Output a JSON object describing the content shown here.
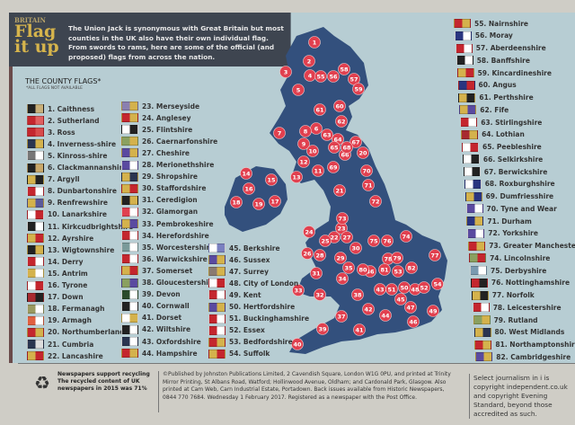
{
  "header": {
    "kicker": "BRITAIN",
    "title": "Flag it up",
    "intro": "The Union Jack is synonymous with Great Britain but most counties in the UK also have their own individual flag. From swords to rams, here are some of the official (and proposed) flags from across the nation."
  },
  "list": {
    "title": "THE COUNTY FLAGS*",
    "note": "*ALL FLAGS NOT AVAILABLE"
  },
  "colors": {
    "panel": "#b7cdd3",
    "header": "#3e4550",
    "title": "#d6b44c",
    "land": "#33507d",
    "marker": "#e1404f"
  },
  "counties": [
    {
      "label": "1. Caithness",
      "c": [
        "#222",
        "#c9b07a"
      ]
    },
    {
      "label": "2. Sutherland",
      "c": [
        "#c4262e",
        "#e06060"
      ]
    },
    {
      "label": "3. Ross",
      "c": [
        "#c4262e",
        "#d84b4b"
      ]
    },
    {
      "label": "4. Inverness-shire",
      "c": [
        "#2a3550",
        "#d4b24c"
      ]
    },
    {
      "label": "5. Kinross-shire",
      "c": [
        "#777",
        "#fff"
      ]
    },
    {
      "label": "6. Clackmannanshire",
      "c": [
        "#222",
        "#c9a86a"
      ]
    },
    {
      "label": "7. Argyll",
      "c": [
        "#d4b24c",
        "#222"
      ]
    },
    {
      "label": "8. Dunbartonshire",
      "c": [
        "#c4262e",
        "#fff"
      ]
    },
    {
      "label": "9. Renfrewshire",
      "c": [
        "#d4b24c",
        "#5a5a9a"
      ]
    },
    {
      "label": "10. Lanarkshire",
      "c": [
        "#fff",
        "#c4262e"
      ]
    },
    {
      "label": "11. Kirkcudbrightshire",
      "c": [
        "#222",
        "#fff"
      ]
    },
    {
      "label": "12. Ayrshire",
      "c": [
        "#d4b24c",
        "#c4262e"
      ]
    },
    {
      "label": "13. Wigtownshire",
      "c": [
        "#222",
        "#d4b24c"
      ]
    },
    {
      "label": "14. Derry",
      "c": [
        "#c4262e",
        "#fff"
      ]
    },
    {
      "label": "15. Antrim",
      "c": [
        "#d4b24c",
        "#fff"
      ]
    },
    {
      "label": "16. Tyrone",
      "c": [
        "#fff",
        "#c4262e"
      ]
    },
    {
      "label": "17. Down",
      "c": [
        "#a82a30",
        "#222"
      ]
    },
    {
      "label": "18. Fermanagh",
      "c": [
        "#9a9a60",
        "#fff"
      ]
    },
    {
      "label": "19. Armagh",
      "c": [
        "#e06040",
        "#fff"
      ]
    },
    {
      "label": "20. Northumberland",
      "c": [
        "#c4262e",
        "#d4b24c"
      ]
    },
    {
      "label": "21. Cumbria",
      "c": [
        "#2a3550",
        "#ddd"
      ]
    },
    {
      "label": "22. Lancashire",
      "c": [
        "#d4b24c",
        "#c4262e"
      ]
    },
    {
      "label": "23. Merseyside",
      "c": [
        "#8a80b0",
        "#d4b24c"
      ]
    },
    {
      "label": "24. Anglesey",
      "c": [
        "#c4262e",
        "#d4b24c"
      ]
    },
    {
      "label": "25. Flintshire",
      "c": [
        "#fff",
        "#222"
      ]
    },
    {
      "label": "26. Caernarfonshire",
      "c": [
        "#8aa060",
        "#d4b24c"
      ]
    },
    {
      "label": "27. Cheshire",
      "c": [
        "#5a4aa0",
        "#d4b24c"
      ]
    },
    {
      "label": "28. Merionethshire",
      "c": [
        "#5a4aa0",
        "#fff"
      ]
    },
    {
      "label": "29. Shropshire",
      "c": [
        "#d4b24c",
        "#2a3550"
      ]
    },
    {
      "label": "30. Staffordshire",
      "c": [
        "#d4b24c",
        "#c4262e"
      ]
    },
    {
      "label": "31. Ceredigion",
      "c": [
        "#222",
        "#d4b24c"
      ]
    },
    {
      "label": "32. Glamorgan",
      "c": [
        "#e04050",
        "#fff"
      ]
    },
    {
      "label": "33. Pembrokeshire",
      "c": [
        "#d4b24c",
        "#5a4aa0"
      ]
    },
    {
      "label": "34. Herefordshire",
      "c": [
        "#c4262e",
        "#fff"
      ]
    },
    {
      "label": "35. Worcestershire",
      "c": [
        "#7a9a9a",
        "#fff"
      ]
    },
    {
      "label": "36. Warwickshire",
      "c": [
        "#c4262e",
        "#fff"
      ]
    },
    {
      "label": "37. Somerset",
      "c": [
        "#d4b24c",
        "#c4262e"
      ]
    },
    {
      "label": "38. Gloucestershire",
      "c": [
        "#8aa060",
        "#5a4aa0"
      ]
    },
    {
      "label": "39. Devon",
      "c": [
        "#2a4a2a",
        "#fff"
      ]
    },
    {
      "label": "40. Cornwall",
      "c": [
        "#222",
        "#fff"
      ]
    },
    {
      "label": "41. Dorset",
      "c": [
        "#fff",
        "#d4b24c"
      ]
    },
    {
      "label": "42. Wiltshire",
      "c": [
        "#222",
        "#fff"
      ]
    },
    {
      "label": "43. Oxfordshire",
      "c": [
        "#2a3550",
        "#fff"
      ]
    },
    {
      "label": "44. Hampshire",
      "c": [
        "#c4262e",
        "#d4b24c"
      ]
    },
    {
      "label": "45. Berkshire",
      "c": [
        "#fff",
        "#7a80c0"
      ]
    },
    {
      "label": "46. Sussex",
      "c": [
        "#5a4aa0",
        "#d4b24c"
      ]
    },
    {
      "label": "47. Surrey",
      "c": [
        "#8a7a70",
        "#d4b24c"
      ]
    },
    {
      "label": "48. City of London",
      "c": [
        "#fff",
        "#c4262e"
      ]
    },
    {
      "label": "49. Kent",
      "c": [
        "#c4262e",
        "#fff"
      ]
    },
    {
      "label": "50. Hertfordshire",
      "c": [
        "#5a4aa0",
        "#d4b24c"
      ]
    },
    {
      "label": "51. Buckinghamshire",
      "c": [
        "#c4262e",
        "#fff"
      ]
    },
    {
      "label": "52. Essex",
      "c": [
        "#c4262e",
        "#fff"
      ]
    },
    {
      "label": "53. Bedfordshire",
      "c": [
        "#c4262e",
        "#d4b24c"
      ]
    },
    {
      "label": "54. Suffolk",
      "c": [
        "#d4b24c",
        "#c4262e"
      ]
    },
    {
      "label": "55. Nairnshire",
      "c": [
        "#c4262e",
        "#d4b24c"
      ]
    },
    {
      "label": "56. Moray",
      "c": [
        "#2a3580",
        "#fff"
      ]
    },
    {
      "label": "57. Aberdeenshire",
      "c": [
        "#c4262e",
        "#fff"
      ]
    },
    {
      "label": "58. Banffshire",
      "c": [
        "#222",
        "#fff"
      ]
    },
    {
      "label": "59. Kincardineshire",
      "c": [
        "#d4b24c",
        "#c4262e"
      ]
    },
    {
      "label": "60. Angus",
      "c": [
        "#2a3580",
        "#c4262e"
      ]
    },
    {
      "label": "61. Perthshire",
      "c": [
        "#d4b24c",
        "#222"
      ]
    },
    {
      "label": "62. Fife",
      "c": [
        "#d4b24c",
        "#5a4aa0"
      ]
    },
    {
      "label": "63. Stirlingshire",
      "c": [
        "#c4262e",
        "#fff"
      ]
    },
    {
      "label": "64. Lothian",
      "c": [
        "#a82a30",
        "#d4b24c"
      ]
    },
    {
      "label": "65. Peebleshire",
      "c": [
        "#fff",
        "#c4262e"
      ]
    },
    {
      "label": "66. Selkirkshire",
      "c": [
        "#fff",
        "#222"
      ]
    },
    {
      "label": "67. Berwickshire",
      "c": [
        "#fff",
        "#222"
      ]
    },
    {
      "label": "68. Roxburghshire",
      "c": [
        "#fff",
        "#2a3580"
      ]
    },
    {
      "label": "69. Dumfriesshire",
      "c": [
        "#d4b24c",
        "#2a3580"
      ]
    },
    {
      "label": "70. Tyne and Wear",
      "c": [
        "#5a4aa0",
        "#fff"
      ]
    },
    {
      "label": "71. Durham",
      "c": [
        "#2a3580",
        "#d4b24c"
      ]
    },
    {
      "label": "72. Yorkshire",
      "c": [
        "#5a4aa0",
        "#fff"
      ]
    },
    {
      "label": "73. Greater Manchester",
      "c": [
        "#c4262e",
        "#d4b24c"
      ]
    },
    {
      "label": "74. Lincolnshire",
      "c": [
        "#8aa060",
        "#c4262e"
      ]
    },
    {
      "label": "75. Derbyshire",
      "c": [
        "#7a9ab0",
        "#fff"
      ]
    },
    {
      "label": "76. Nottinghamshire",
      "c": [
        "#c4262e",
        "#222"
      ]
    },
    {
      "label": "77. Norfolk",
      "c": [
        "#d4b24c",
        "#222"
      ]
    },
    {
      "label": "78. Leicestershire",
      "c": [
        "#c4262e",
        "#fff"
      ]
    },
    {
      "label": "79. Rutland",
      "c": [
        "#8aa060",
        "#d4b24c"
      ]
    },
    {
      "label": "80. West Midlands",
      "c": [
        "#d4b24c",
        "#2a3550"
      ]
    },
    {
      "label": "81. Northamptonshire",
      "c": [
        "#c4262e",
        "#d4b24c"
      ]
    },
    {
      "label": "82. Cambridgeshire",
      "c": [
        "#5a4aa0",
        "#d4b24c"
      ]
    }
  ],
  "footer": {
    "recycle_icon": "recycle-icon",
    "recycle_text": "Newspapers support recycling The recycled content of UK newspapers in 2015 was 71%",
    "publisher": "©Published by Johnston Publications Limited, 2 Cavendish Square, London W1G 0PU, and printed at Trinity Mirror Printing, St Albans Road, Watford; Hollinwood Avenue, Oldham; and Cardonald Park, Glasgow. Also printed at Cam Web, Carn Industrial Estate, Portadown. Back issues available from Historic Newspapers, 0844 770 7684. Wednesday 1 February 2017. Registered as a newspaper with the Post Office.",
    "copyright": "Select journalism in i is copyright independent.co.uk and copyright Evening Standard, beyond those accredited as such."
  }
}
